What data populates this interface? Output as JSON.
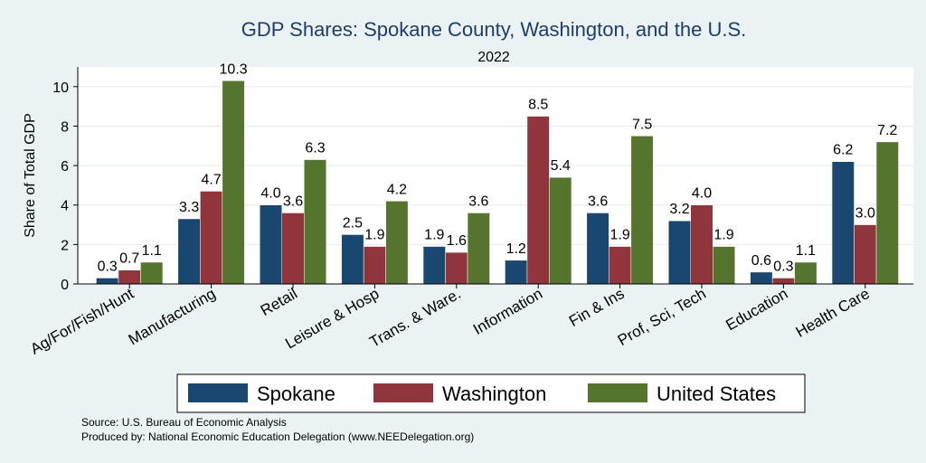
{
  "chart_data": {
    "type": "bar",
    "title": "GDP Shares: Spokane County, Washington, and the U.S.",
    "subtitle": "2022",
    "ylabel": "Share of Total GDP",
    "xlabel": "",
    "ylim": [
      0,
      11
    ],
    "yticks": [
      0,
      2,
      4,
      6,
      8,
      10
    ],
    "grid": true,
    "legend_position": "bottom",
    "categories": [
      "Ag/For/Fish/Hunt",
      "Manufacturing",
      "Retail",
      "Leisure & Hosp",
      "Trans. & Ware.",
      "Information",
      "Fin & Ins",
      "Prof, Sci, Tech",
      "Education",
      "Health Care"
    ],
    "series": [
      {
        "name": "Spokane",
        "color": "#1a476f",
        "values": [
          0.3,
          3.3,
          4.0,
          2.5,
          1.9,
          1.2,
          3.6,
          3.2,
          0.6,
          6.2
        ],
        "labels": [
          "0.3",
          "3.3",
          "4.0",
          "2.5",
          "1.9",
          "1.2",
          "3.6",
          "3.2",
          "0.6",
          "6.2"
        ]
      },
      {
        "name": "Washington",
        "color": "#90353b",
        "values": [
          0.7,
          4.7,
          3.6,
          1.9,
          1.6,
          8.5,
          1.9,
          4.0,
          0.3,
          3.0
        ],
        "labels": [
          "0.7",
          "4.7",
          "3.6",
          "1.9",
          "1.6",
          "8.5",
          "1.9",
          "4.0",
          "0.3",
          "3.0"
        ]
      },
      {
        "name": "United States",
        "color": "#55752f",
        "values": [
          1.1,
          10.3,
          6.3,
          4.2,
          3.6,
          5.4,
          7.5,
          1.9,
          1.1,
          7.2
        ],
        "labels": [
          "1.1",
          "10.3",
          "6.3",
          "4.2",
          "3.6",
          "5.4",
          "7.5",
          "1.9",
          "1.1",
          "7.2"
        ]
      }
    ],
    "source_note": "Source: U.S. Bureau of Economic Analysis",
    "producer_note": "Produced by: National Economic Education Delegation (www.NEEDelegation.org)"
  }
}
